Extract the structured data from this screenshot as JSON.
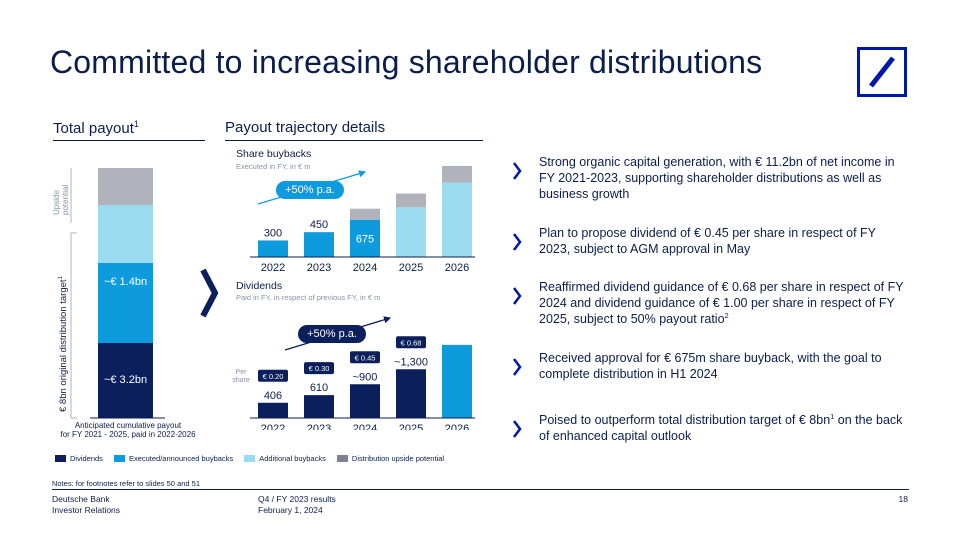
{
  "slide": {
    "title": "Committed to increasing shareholder distributions",
    "page_number": "18"
  },
  "colors": {
    "dividends": "#0a1f5c",
    "executed_buybacks": "#0e9bde",
    "additional_buybacks": "#9bdcf0",
    "upside": "#b0b3bb",
    "accent": "#0018a8"
  },
  "total_payout": {
    "title": "Total payout",
    "title_sup": "1",
    "upside_label": "Upside potential",
    "distribution_label": "€ 8bn original distribution target",
    "distribution_label_sup": "1",
    "buybacks_label": "~€ 1.4bn",
    "dividends_label": "~€ 3.2bn",
    "caption_line1": "Anticipated cumulative payout",
    "caption_line2": "for FY 2021 - 2025, paid in 2022-2026"
  },
  "trajectory": {
    "title": "Payout trajectory details",
    "buybacks_title": "Share buybacks",
    "buybacks_subtitle": "Executed in FY, in € m",
    "buybacks_growth": "+50% p.a.",
    "dividends_title": "Dividends",
    "dividends_subtitle": "Paid in FY, in respect of previous FY, in € m",
    "dividends_growth": "+50% p.a.",
    "per_share_label": "Per share"
  },
  "chart_data": [
    {
      "type": "bar",
      "title": "Share buybacks",
      "categories": [
        "2022",
        "2023",
        "2024",
        "2025",
        "2026"
      ],
      "data_labels": [
        "300",
        "450",
        "675",
        "",
        ""
      ],
      "series": [
        {
          "name": "Executed/announced buybacks",
          "values": [
            300,
            450,
            675,
            0,
            0
          ]
        },
        {
          "name": "Additional buybacks",
          "values": [
            0,
            0,
            0,
            900,
            1350
          ]
        },
        {
          "name": "Distribution upside potential",
          "values": [
            0,
            0,
            200,
            250,
            300
          ]
        }
      ]
    },
    {
      "type": "bar",
      "title": "Dividends",
      "categories": [
        "2022",
        "2023",
        "2024",
        "2025",
        "2026"
      ],
      "data_labels": [
        "406",
        "610",
        "~900",
        "~1,300",
        ""
      ],
      "per_share": [
        "€ 0.20",
        "€ 0.30",
        "€ 0.45",
        "€ 0.68",
        ""
      ],
      "series": [
        {
          "name": "Dividends",
          "values": [
            406,
            610,
            900,
            1300,
            0
          ]
        },
        {
          "name": "Executed/announced buybacks",
          "values": [
            0,
            0,
            0,
            0,
            1950
          ]
        }
      ]
    },
    {
      "type": "bar",
      "title": "Total payout",
      "categories": [
        ""
      ],
      "series": [
        {
          "name": "Dividends",
          "values": [
            3.2
          ]
        },
        {
          "name": "Executed/announced buybacks",
          "values": [
            1.4
          ]
        },
        {
          "name": "Additional buybacks",
          "values": [
            1.8
          ]
        },
        {
          "name": "Distribution upside potential",
          "values": [
            1.1
          ]
        }
      ]
    }
  ],
  "bullets": [
    {
      "text": "Strong organic capital generation, with € 11.2bn of net income in FY 2021-2023, supporting shareholder distributions as well as business growth",
      "sup": ""
    },
    {
      "text": "Plan to propose dividend of € 0.45 per share in respect of FY 2023, subject to AGM approval in May",
      "sup": ""
    },
    {
      "text": "Reaffirmed dividend guidance of € 0.68 per share in respect of FY 2024 and dividend guidance of € 1.00 per share in respect of FY 2025, subject to 50% payout ratio",
      "sup": "2"
    },
    {
      "text": "Received approval for € 675m share buyback, with the goal to complete distribution in H1 2024",
      "sup": ""
    },
    {
      "text_a": "Poised to outperform total distribution target of € 8bn",
      "sup": "1",
      "text_b": " on the back of enhanced capital outlook"
    }
  ],
  "legend": [
    {
      "label": "Dividends",
      "color": "#0a1f5c"
    },
    {
      "label": "Executed/announced buybacks",
      "color": "#0e9bde"
    },
    {
      "label": "Additional buybacks",
      "color": "#9bdcf0"
    },
    {
      "label": "Distribution upside potential",
      "color": "#7d8290"
    }
  ],
  "notes": "Notes: for footnotes refer to slides 50 and 51",
  "footer": {
    "company": "Deutsche Bank",
    "department": "Investor Relations",
    "report": "Q4 / FY 2023 results",
    "date": "February 1, 2024"
  }
}
